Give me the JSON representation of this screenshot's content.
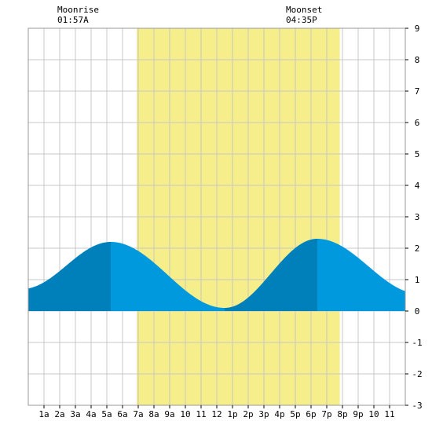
{
  "chart_data": {
    "type": "area",
    "title": "",
    "xlabel": "",
    "ylabel": "",
    "x_range_hours": [
      0,
      24
    ],
    "ylim": [
      -3,
      9
    ],
    "grid": true,
    "x_tick_labels": [
      "1a",
      "2a",
      "3a",
      "4a",
      "5a",
      "6a",
      "7a",
      "8a",
      "9a",
      "10",
      "11",
      "12",
      "1p",
      "2p",
      "3p",
      "4p",
      "5p",
      "6p",
      "7p",
      "8p",
      "9p",
      "10",
      "11"
    ],
    "y_tick_labels": [
      "-3",
      "-2",
      "-1",
      "0",
      "1",
      "2",
      "3",
      "4",
      "5",
      "6",
      "7",
      "8",
      "9"
    ],
    "daylight_hours": [
      6.9,
      19.83
    ],
    "tide_extremes": [
      {
        "hour": -0.4,
        "value": 0.7
      },
      {
        "hour": 5.25,
        "value": 2.2
      },
      {
        "hour": 12.5,
        "value": 0.1
      },
      {
        "hour": 18.4,
        "value": 2.3
      },
      {
        "hour": 24.9,
        "value": 0.55
      }
    ],
    "moonrise": {
      "label": "Moonrise",
      "time": "01:57A",
      "hour": 1.95
    },
    "moonset": {
      "label": "Moonset",
      "time": "04:35P",
      "hour": 16.58
    },
    "colors": {
      "tide_light": "#0099dd",
      "tide_dark": "#0080bb",
      "daylight": "#f5ee8a",
      "grid": "#c8c8c8",
      "border": "#999999"
    }
  }
}
